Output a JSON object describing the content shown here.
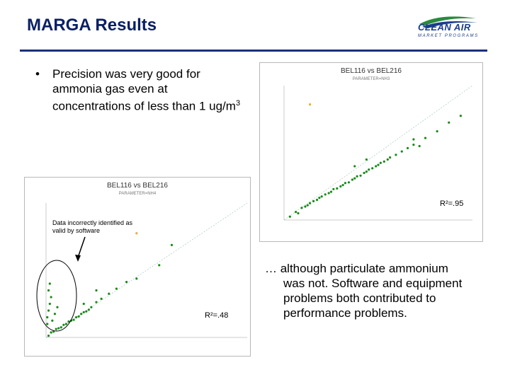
{
  "slide": {
    "title": "MARGA Results",
    "logo_text": "CLEAN AIR",
    "logo_sub": "MARKET PROGRAMS",
    "bullet_text_main": "Precision was very good for ammonia gas even at concentrations of less than 1 ug/m",
    "bullet_sup": "3",
    "annotation": "Data incorrectly identified as valid by software",
    "bottom_text_line1": "… although particulate ammonium",
    "bottom_text_rest": "was not.  Software and equipment problems both contributed to performance problems."
  },
  "chart_data": [
    {
      "type": "scatter",
      "title": "BEL116 vs BEL216",
      "subtitle": "PARAMETER=NH3",
      "annotation": "R²=.95",
      "ylim": [
        0,
        2.0
      ],
      "xlim": [
        0,
        1.6
      ],
      "series": [
        {
          "color": "#1a8a1a",
          "points": [
            [
              0.05,
              0.05
            ],
            [
              0.1,
              0.12
            ],
            [
              0.15,
              0.18
            ],
            [
              0.2,
              0.22
            ],
            [
              0.25,
              0.28
            ],
            [
              0.3,
              0.33
            ],
            [
              0.35,
              0.38
            ],
            [
              0.4,
              0.42
            ],
            [
              0.45,
              0.47
            ],
            [
              0.5,
              0.52
            ],
            [
              0.55,
              0.56
            ],
            [
              0.6,
              0.62
            ],
            [
              0.65,
              0.66
            ],
            [
              0.7,
              0.72
            ],
            [
              0.75,
              0.77
            ],
            [
              0.8,
              0.82
            ],
            [
              0.85,
              0.87
            ],
            [
              0.9,
              0.93
            ],
            [
              0.95,
              0.97
            ],
            [
              1.0,
              1.02
            ],
            [
              1.05,
              1.07
            ],
            [
              1.1,
              1.12
            ],
            [
              1.2,
              1.22
            ],
            [
              1.3,
              1.32
            ],
            [
              1.4,
              1.45
            ],
            [
              1.5,
              1.55
            ],
            [
              0.12,
              0.1
            ],
            [
              0.18,
              0.2
            ],
            [
              0.22,
              0.25
            ],
            [
              0.28,
              0.3
            ],
            [
              0.32,
              0.35
            ],
            [
              0.38,
              0.4
            ],
            [
              0.42,
              0.46
            ],
            [
              0.48,
              0.5
            ],
            [
              0.52,
              0.55
            ],
            [
              0.58,
              0.6
            ],
            [
              0.62,
              0.65
            ],
            [
              0.68,
              0.7
            ],
            [
              0.72,
              0.75
            ],
            [
              0.78,
              0.8
            ],
            [
              0.82,
              0.85
            ],
            [
              0.88,
              0.9
            ],
            [
              1.1,
              1.2
            ],
            [
              1.15,
              1.1
            ],
            [
              0.6,
              0.8
            ],
            [
              0.7,
              0.9
            ]
          ]
        },
        {
          "color": "#e0b030",
          "points": [
            [
              0.22,
              1.72
            ]
          ]
        }
      ]
    },
    {
      "type": "scatter",
      "title": "BEL116 vs BEL216",
      "subtitle": "PARAMETER=NH4",
      "annotation": "R²=.48",
      "ylim": [
        0,
        8
      ],
      "xlim": [
        0,
        8
      ],
      "series": [
        {
          "color": "#1a8a1a",
          "points": [
            [
              0.1,
              0.1
            ],
            [
              0.2,
              0.3
            ],
            [
              0.3,
              0.35
            ],
            [
              0.4,
              0.5
            ],
            [
              0.5,
              0.55
            ],
            [
              0.6,
              0.6
            ],
            [
              0.7,
              0.75
            ],
            [
              0.8,
              0.8
            ],
            [
              0.9,
              0.95
            ],
            [
              1.0,
              1.0
            ],
            [
              1.1,
              1.05
            ],
            [
              1.2,
              1.2
            ],
            [
              1.3,
              1.25
            ],
            [
              1.4,
              1.4
            ],
            [
              1.5,
              1.5
            ],
            [
              1.6,
              1.55
            ],
            [
              1.7,
              1.65
            ],
            [
              1.8,
              1.8
            ],
            [
              2.0,
              2.1
            ],
            [
              2.2,
              2.3
            ],
            [
              2.5,
              2.6
            ],
            [
              2.8,
              2.9
            ],
            [
              3.2,
              3.3
            ],
            [
              3.6,
              3.5
            ],
            [
              0.05,
              1.2
            ],
            [
              0.1,
              1.6
            ],
            [
              0.15,
              2.0
            ],
            [
              0.2,
              2.4
            ],
            [
              0.1,
              2.8
            ],
            [
              0.15,
              3.2
            ],
            [
              0.05,
              0.8
            ],
            [
              0.25,
              1.0
            ],
            [
              0.35,
              1.4
            ],
            [
              0.45,
              1.8
            ],
            [
              4.5,
              4.3
            ],
            [
              5.0,
              5.5
            ],
            [
              2.0,
              2.8
            ],
            [
              1.5,
              2.0
            ]
          ]
        },
        {
          "color": "#e0b030",
          "points": [
            [
              3.6,
              6.2
            ]
          ]
        }
      ]
    }
  ]
}
